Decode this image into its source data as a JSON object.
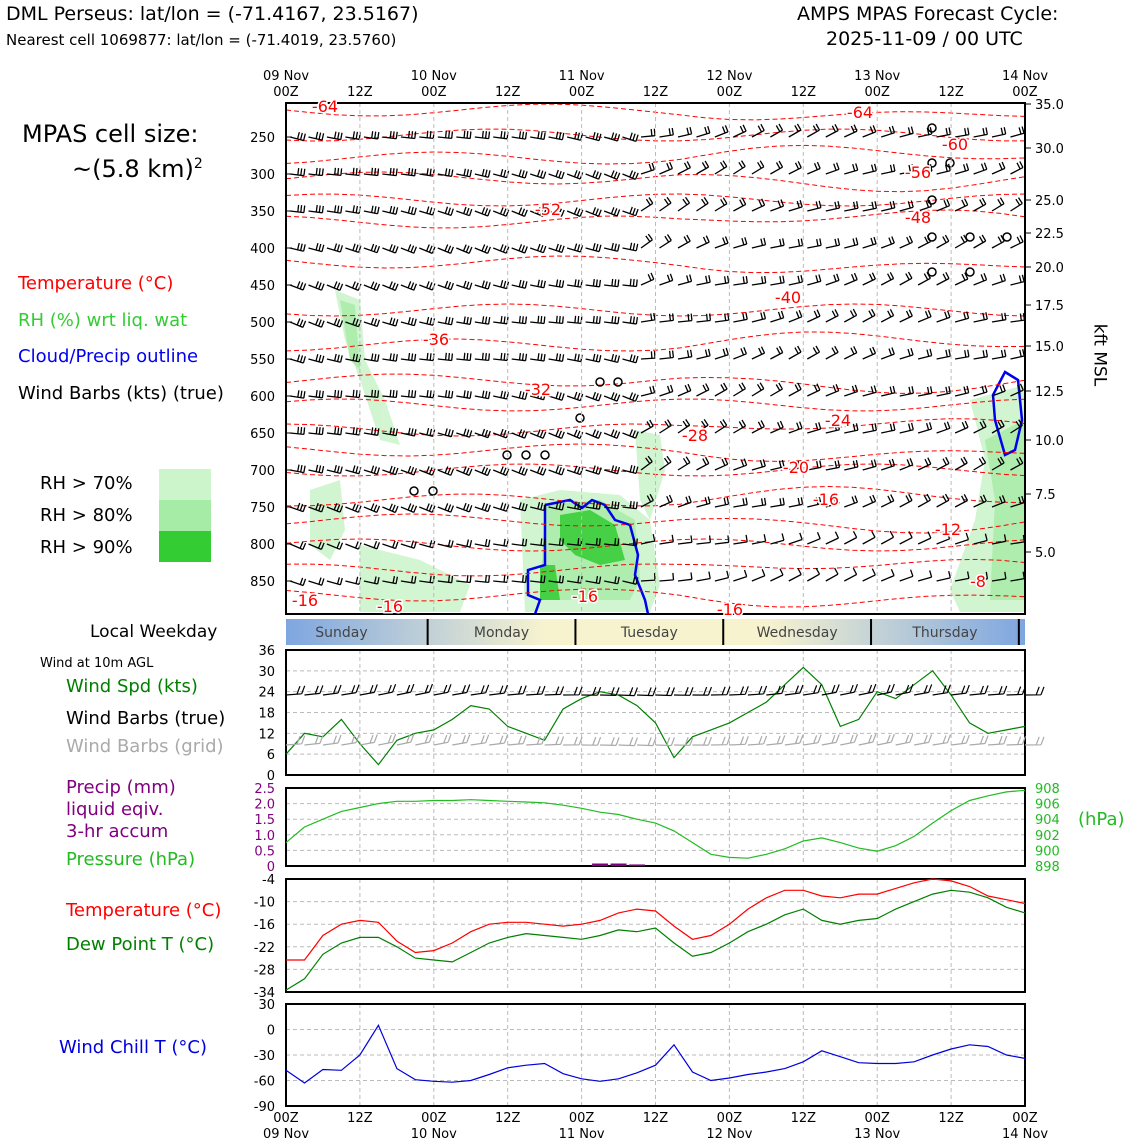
{
  "header": {
    "title_left": "DML Perseus: lat/lon = (-71.4167, 23.5167)",
    "subtitle_left": "Nearest cell 1069877: lat/lon = (-71.4019, 23.5760)",
    "title_right_1": "AMPS MPAS Forecast Cycle:",
    "title_right_2": "2025-11-09 / 00 UTC",
    "cell_size_1": "MPAS cell size:",
    "cell_size_2": "~(5.8 km)",
    "cell_size_sup": "2"
  },
  "colors": {
    "temperature": "#ff0000",
    "rh": "#33cc33",
    "cloud": "#0000ee",
    "pressure": "#22bb22",
    "precip": "#800080",
    "dewpoint": "#008000",
    "windchill": "#0000dd",
    "windspd": "#008000",
    "barb_grid": "#aaaaaa"
  },
  "legend": {
    "temperature": "Temperature (°C)",
    "rh": "RH (%) wrt liq. wat",
    "cloud": "Cloud/Precip outline",
    "barbs": "Wind Barbs (kts) (true)",
    "rh70": "RH > 70%",
    "rh80": "RH > 80%",
    "rh90": "RH > 90%"
  },
  "time_axis": {
    "ticks": [
      "00Z",
      "12Z",
      "00Z",
      "12Z",
      "00Z",
      "12Z",
      "00Z",
      "12Z",
      "00Z",
      "12Z",
      "00Z"
    ],
    "dates": [
      "09 Nov",
      "10 Nov",
      "11 Nov",
      "12 Nov",
      "13 Nov",
      "14 Nov"
    ]
  },
  "weekday": {
    "label": "Local Weekday",
    "days": [
      "Sunday",
      "Monday",
      "Tuesday",
      "Wednesday",
      "Thursday"
    ]
  },
  "chart_data": [
    {
      "type": "heatmap",
      "panel": "profile",
      "y_left_label": "",
      "y_right_label": "kft MSL",
      "pressure_ticks": [
        250,
        300,
        350,
        400,
        450,
        500,
        550,
        600,
        650,
        700,
        750,
        800,
        850
      ],
      "kft_ticks": [
        "35.0",
        "30.0",
        "25.0",
        "22.5",
        "20.0",
        "17.5",
        "15.0",
        "12.5",
        "10.0",
        "7.5",
        "5.0"
      ],
      "temperature_contours": [
        "-64",
        "-64",
        "-60",
        "-56",
        "-52",
        "-48",
        "-40",
        "-36",
        "-32",
        "-28",
        "-24",
        "-20",
        "-16",
        "-12",
        "-8",
        "-16",
        "-16",
        "-16",
        "-16"
      ]
    },
    {
      "type": "line",
      "panel": "wind",
      "title": "Wind at 10m AGL",
      "labels": [
        "Wind Spd (kts)",
        "Wind Barbs (true)",
        "Wind Barbs (grid)"
      ],
      "ylim": [
        0,
        36
      ],
      "yticks": [
        "36",
        "30",
        "24",
        "18",
        "12",
        "6",
        "0"
      ],
      "x": [
        0,
        3,
        6,
        9,
        12,
        15,
        18,
        21,
        24,
        27,
        30,
        33,
        36,
        39,
        42,
        45,
        48,
        51,
        54,
        57,
        60,
        63,
        66,
        69,
        72,
        75,
        78,
        81,
        84,
        87,
        90,
        93,
        96,
        99,
        102,
        105,
        108,
        111,
        114,
        117,
        120
      ],
      "series": [
        {
          "name": "Wind Spd (kts)",
          "values": [
            6,
            12,
            11,
            16,
            9,
            3,
            10,
            12,
            13,
            16,
            20,
            19,
            14,
            12,
            10,
            19,
            22,
            24,
            23,
            20,
            15,
            5,
            11,
            13,
            15,
            18,
            21,
            26,
            31,
            26,
            14,
            16,
            24,
            22,
            26,
            30,
            23,
            15,
            12,
            13,
            14
          ]
        }
      ]
    },
    {
      "type": "line",
      "panel": "pressure",
      "labels": [
        "Precip (mm)",
        "liquid eqiv.",
        "3-hr accum",
        "Pressure (hPa)"
      ],
      "right_unit": "(hPa)",
      "y_left_ticks": [
        "2.5",
        "2.0",
        "1.5",
        "1.0",
        "0.5",
        "0"
      ],
      "y_right_ticks": [
        "908",
        "906",
        "904",
        "902",
        "900",
        "898"
      ],
      "ylim": [
        898,
        908
      ],
      "x": [
        0,
        3,
        6,
        9,
        12,
        15,
        18,
        21,
        24,
        27,
        30,
        33,
        36,
        39,
        42,
        45,
        48,
        51,
        54,
        57,
        60,
        63,
        66,
        69,
        72,
        75,
        78,
        81,
        84,
        87,
        90,
        93,
        96,
        99,
        102,
        105,
        108,
        111,
        114,
        117,
        120
      ],
      "series": [
        {
          "name": "Pressure (hPa)",
          "values": [
            901,
            903,
            904,
            905,
            905.5,
            906,
            906.3,
            906.3,
            906.4,
            906.4,
            906.5,
            906.4,
            906.3,
            906.2,
            906.1,
            905.8,
            905.4,
            904.9,
            904.6,
            904,
            903.5,
            902.5,
            901,
            899.5,
            899.1,
            899,
            899.5,
            900.2,
            901.2,
            901.6,
            901,
            900.3,
            899.9,
            900.6,
            901.8,
            903.5,
            905.1,
            906.4,
            907,
            907.5,
            907.7
          ]
        },
        {
          "name": "Precip (mm)",
          "values": [
            0,
            0,
            0,
            0,
            0,
            0,
            0,
            0,
            0,
            0,
            0,
            0,
            0,
            0,
            0,
            0,
            0,
            0.08,
            0.08,
            0.05,
            0,
            0,
            0,
            0,
            0,
            0,
            0,
            0,
            0,
            0,
            0,
            0,
            0,
            0,
            0,
            0,
            0,
            0,
            0,
            0,
            0
          ]
        }
      ]
    },
    {
      "type": "line",
      "panel": "temperature",
      "labels": [
        "Temperature (°C)",
        "Dew Point T (°C)"
      ],
      "ylim": [
        -34,
        -4
      ],
      "yticks": [
        "-4",
        "-10",
        "-16",
        "-22",
        "-28",
        "-34"
      ],
      "x": [
        0,
        3,
        6,
        9,
        12,
        15,
        18,
        21,
        24,
        27,
        30,
        33,
        36,
        39,
        42,
        45,
        48,
        51,
        54,
        57,
        60,
        63,
        66,
        69,
        72,
        75,
        78,
        81,
        84,
        87,
        90,
        93,
        96,
        99,
        102,
        105,
        108,
        111,
        114,
        117,
        120
      ],
      "series": [
        {
          "name": "Temperature (°C)",
          "values": [
            -25.5,
            -25.5,
            -19,
            -16,
            -15,
            -15.5,
            -20.5,
            -23.5,
            -23,
            -21,
            -18,
            -16,
            -15.5,
            -15.5,
            -16,
            -16.5,
            -16,
            -15,
            -13,
            -12,
            -12.5,
            -16.5,
            -20,
            -19,
            -16,
            -12,
            -9,
            -7,
            -7,
            -8.5,
            -9,
            -8,
            -8,
            -6.5,
            -5,
            -4,
            -4.5,
            -6,
            -8.5,
            -9.5,
            -10.5
          ]
        },
        {
          "name": "Dew Point T (°C)",
          "values": [
            -33.5,
            -30.5,
            -24,
            -21,
            -19.5,
            -19.5,
            -22,
            -25,
            -25.5,
            -26,
            -23.5,
            -21,
            -19.5,
            -18.5,
            -19,
            -19.5,
            -20,
            -19,
            -17.5,
            -18,
            -17,
            -21,
            -24.5,
            -23.5,
            -21,
            -18,
            -16,
            -13.5,
            -12,
            -15,
            -16,
            -15,
            -14.5,
            -12,
            -10,
            -8,
            -7,
            -7.5,
            -9,
            -11.5,
            -13
          ]
        }
      ]
    },
    {
      "type": "line",
      "panel": "windchill",
      "labels": [
        "Wind Chill T (°C)"
      ],
      "ylim": [
        -90,
        30
      ],
      "yticks": [
        "30",
        "0",
        "-30",
        "-60",
        "-90"
      ],
      "x": [
        0,
        3,
        6,
        9,
        12,
        15,
        18,
        21,
        24,
        27,
        30,
        33,
        36,
        39,
        42,
        45,
        48,
        51,
        54,
        57,
        60,
        63,
        66,
        69,
        72,
        75,
        78,
        81,
        84,
        87,
        90,
        93,
        96,
        99,
        102,
        105,
        108,
        111,
        114,
        117,
        120
      ],
      "series": [
        {
          "name": "Wind Chill T (°C)",
          "values": [
            -48,
            -63,
            -47,
            -48,
            -30,
            5,
            -46,
            -59,
            -61,
            -62,
            -60,
            -53,
            -45,
            -42,
            -40,
            -52,
            -58,
            -61,
            -58,
            -51,
            -42,
            -18,
            -50,
            -60,
            -57,
            -53,
            -50,
            -46,
            -38,
            -25,
            -32,
            -39,
            -40,
            -40,
            -38,
            -30,
            -23,
            -18,
            -20,
            -30,
            -34
          ]
        }
      ]
    }
  ]
}
